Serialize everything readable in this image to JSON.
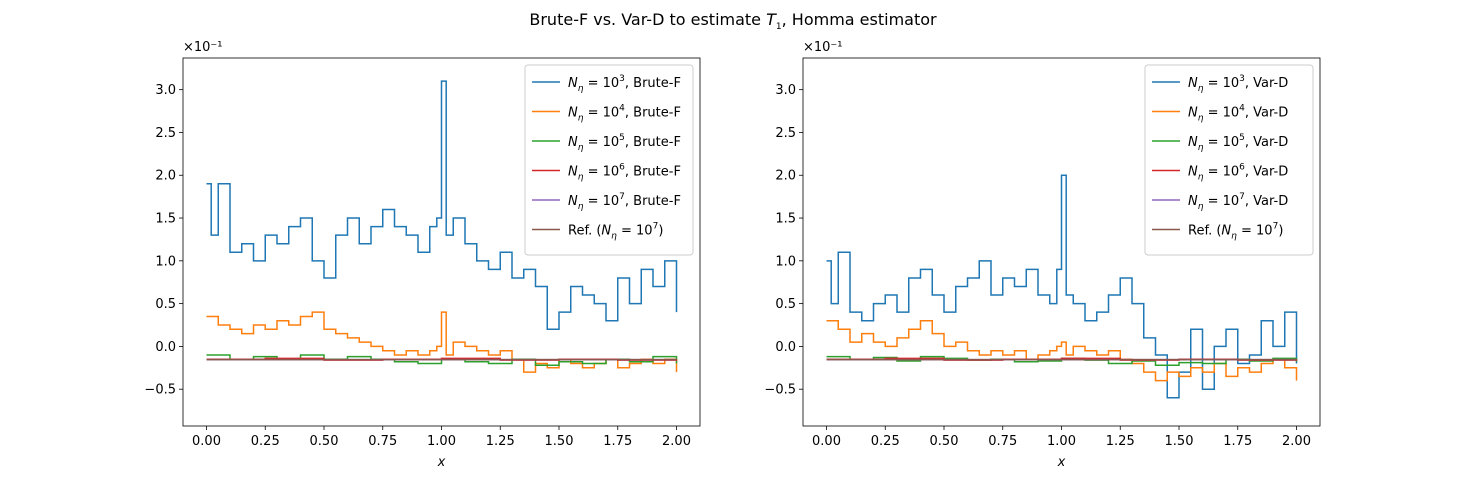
{
  "figure": {
    "title_prefix": "Brute-F vs. Var-D to estimate ",
    "title_symbol": "T",
    "title_subscript": "1",
    "title_suffix": ", Homma estimator"
  },
  "colors": {
    "C0": "#1f77b4",
    "C1": "#ff7f0e",
    "C2": "#2ca02c",
    "C3": "#d62728",
    "C4": "#9467bd",
    "C5": "#8c564b"
  },
  "chart_data": [
    {
      "type": "line",
      "panel": "left",
      "xlabel": "x",
      "ylabel": "",
      "offset_text": "×10⁻¹",
      "xlim": [
        -0.1,
        2.1
      ],
      "ylim": [
        -0.93,
        3.37
      ],
      "xticks": [
        "0.00",
        "0.25",
        "0.50",
        "0.75",
        "1.00",
        "1.25",
        "1.50",
        "1.75",
        "2.00"
      ],
      "yticks": [
        "−0.5",
        "0.0",
        "0.5",
        "1.0",
        "1.5",
        "2.0",
        "2.5",
        "3.0"
      ],
      "legend_position": "upper right",
      "legend_suffix": ", Brute-F",
      "series": [
        {
          "name": "N_η = 10^3, Brute-F",
          "exp": "3",
          "color_key": "C0",
          "style": "step",
          "x": [
            0.0,
            0.02,
            0.05,
            0.1,
            0.15,
            0.2,
            0.25,
            0.3,
            0.35,
            0.4,
            0.45,
            0.5,
            0.55,
            0.6,
            0.65,
            0.7,
            0.75,
            0.8,
            0.85,
            0.9,
            0.95,
            0.98,
            1.0,
            1.02,
            1.05,
            1.1,
            1.15,
            1.2,
            1.25,
            1.3,
            1.35,
            1.4,
            1.45,
            1.5,
            1.55,
            1.6,
            1.65,
            1.7,
            1.75,
            1.8,
            1.85,
            1.9,
            1.95,
            2.0
          ],
          "y": [
            1.9,
            1.3,
            1.9,
            1.1,
            1.2,
            1.0,
            1.3,
            1.2,
            1.4,
            1.5,
            1.0,
            0.8,
            1.3,
            1.5,
            1.2,
            1.4,
            1.6,
            1.4,
            1.3,
            1.1,
            1.4,
            1.5,
            3.1,
            1.3,
            1.5,
            1.2,
            1.0,
            0.9,
            1.1,
            0.8,
            0.9,
            0.7,
            0.2,
            0.4,
            0.7,
            0.6,
            0.5,
            0.3,
            0.8,
            0.5,
            0.9,
            0.7,
            1.0,
            0.4
          ]
        },
        {
          "name": "N_η = 10^4, Brute-F",
          "exp": "4",
          "color_key": "C1",
          "style": "step",
          "x": [
            0.0,
            0.05,
            0.1,
            0.15,
            0.2,
            0.25,
            0.3,
            0.35,
            0.4,
            0.45,
            0.5,
            0.55,
            0.6,
            0.65,
            0.7,
            0.75,
            0.8,
            0.85,
            0.9,
            0.95,
            0.98,
            1.0,
            1.02,
            1.05,
            1.1,
            1.15,
            1.2,
            1.25,
            1.3,
            1.35,
            1.4,
            1.45,
            1.5,
            1.55,
            1.6,
            1.65,
            1.7,
            1.75,
            1.8,
            1.85,
            1.9,
            1.95,
            2.0
          ],
          "y": [
            0.35,
            0.25,
            0.2,
            0.15,
            0.25,
            0.2,
            0.3,
            0.25,
            0.35,
            0.4,
            0.2,
            0.15,
            0.1,
            0.05,
            0.0,
            -0.05,
            -0.1,
            -0.05,
            -0.1,
            -0.05,
            0.0,
            0.4,
            -0.1,
            0.05,
            0.0,
            -0.05,
            -0.1,
            -0.05,
            -0.15,
            -0.3,
            -0.2,
            -0.25,
            -0.15,
            -0.2,
            -0.25,
            -0.2,
            -0.15,
            -0.25,
            -0.2,
            -0.15,
            -0.2,
            -0.15,
            -0.3
          ]
        },
        {
          "name": "N_η = 10^5, Brute-F",
          "exp": "5",
          "color_key": "C2",
          "style": "step",
          "x": [
            0.0,
            0.1,
            0.2,
            0.3,
            0.4,
            0.5,
            0.6,
            0.7,
            0.8,
            0.9,
            1.0,
            1.1,
            1.2,
            1.3,
            1.4,
            1.5,
            1.6,
            1.7,
            1.8,
            1.9,
            2.0
          ],
          "y": [
            -0.1,
            -0.15,
            -0.12,
            -0.15,
            -0.1,
            -0.15,
            -0.12,
            -0.15,
            -0.18,
            -0.2,
            -0.15,
            -0.18,
            -0.2,
            -0.15,
            -0.22,
            -0.18,
            -0.2,
            -0.15,
            -0.18,
            -0.12,
            -0.2
          ]
        },
        {
          "name": "N_η = 10^6, Brute-F",
          "exp": "6",
          "color_key": "C3",
          "style": "step",
          "x": [
            0.0,
            0.25,
            0.5,
            0.75,
            1.0,
            1.25,
            1.5,
            1.75,
            2.0
          ],
          "y": [
            -0.15,
            -0.14,
            -0.16,
            -0.15,
            -0.14,
            -0.16,
            -0.15,
            -0.16,
            -0.15
          ]
        },
        {
          "name": "N_η = 10^7, Brute-F",
          "exp": "7",
          "color_key": "C4",
          "style": "step",
          "x": [
            0.0,
            2.0
          ],
          "y": [
            -0.155,
            -0.155
          ]
        },
        {
          "name": "Ref. (N_η = 10^7)",
          "exp": "7",
          "color_key": "C5",
          "style": "step",
          "x": [
            0.0,
            2.0
          ],
          "y": [
            -0.155,
            -0.155
          ]
        }
      ]
    },
    {
      "type": "line",
      "panel": "right",
      "xlabel": "x",
      "ylabel": "",
      "offset_text": "×10⁻¹",
      "xlim": [
        -0.1,
        2.1
      ],
      "ylim": [
        -0.93,
        3.37
      ],
      "xticks": [
        "0.00",
        "0.25",
        "0.50",
        "0.75",
        "1.00",
        "1.25",
        "1.50",
        "1.75",
        "2.00"
      ],
      "yticks": [
        "−0.5",
        "0.0",
        "0.5",
        "1.0",
        "1.5",
        "2.0",
        "2.5",
        "3.0"
      ],
      "legend_position": "upper right",
      "legend_suffix": ", Var-D",
      "series": [
        {
          "name": "N_η = 10^3, Var-D",
          "exp": "3",
          "color_key": "C0",
          "style": "step",
          "x": [
            0.0,
            0.02,
            0.05,
            0.1,
            0.15,
            0.2,
            0.25,
            0.3,
            0.35,
            0.4,
            0.45,
            0.5,
            0.55,
            0.6,
            0.65,
            0.7,
            0.75,
            0.8,
            0.85,
            0.9,
            0.95,
            0.98,
            1.0,
            1.02,
            1.05,
            1.1,
            1.15,
            1.2,
            1.25,
            1.3,
            1.35,
            1.4,
            1.45,
            1.5,
            1.55,
            1.6,
            1.65,
            1.7,
            1.75,
            1.8,
            1.85,
            1.9,
            1.95,
            2.0
          ],
          "y": [
            1.0,
            0.5,
            1.1,
            0.4,
            0.3,
            0.5,
            0.6,
            0.4,
            0.8,
            0.9,
            0.6,
            0.4,
            0.7,
            0.8,
            1.0,
            0.6,
            0.8,
            0.7,
            0.9,
            0.6,
            0.5,
            0.9,
            2.0,
            0.6,
            0.5,
            0.3,
            0.4,
            0.6,
            0.8,
            0.5,
            0.1,
            -0.1,
            -0.6,
            -0.3,
            0.2,
            -0.5,
            0.0,
            0.2,
            -0.2,
            -0.1,
            0.3,
            0.0,
            0.4,
            -0.2
          ]
        },
        {
          "name": "N_η = 10^4, Var-D",
          "exp": "4",
          "color_key": "C1",
          "style": "step",
          "x": [
            0.0,
            0.05,
            0.1,
            0.15,
            0.2,
            0.25,
            0.3,
            0.35,
            0.4,
            0.45,
            0.5,
            0.55,
            0.6,
            0.65,
            0.7,
            0.75,
            0.8,
            0.85,
            0.9,
            0.95,
            0.98,
            1.0,
            1.02,
            1.05,
            1.1,
            1.15,
            1.2,
            1.25,
            1.3,
            1.35,
            1.4,
            1.45,
            1.5,
            1.55,
            1.6,
            1.65,
            1.7,
            1.75,
            1.8,
            1.85,
            1.9,
            1.95,
            2.0
          ],
          "y": [
            0.3,
            0.2,
            0.05,
            0.15,
            0.05,
            0.0,
            0.1,
            0.2,
            0.3,
            0.15,
            0.0,
            0.05,
            -0.05,
            -0.1,
            -0.05,
            -0.1,
            -0.05,
            -0.15,
            -0.1,
            -0.05,
            0.0,
            0.05,
            -0.1,
            0.0,
            -0.05,
            -0.1,
            -0.05,
            -0.15,
            -0.2,
            -0.3,
            -0.4,
            -0.3,
            -0.35,
            -0.25,
            -0.3,
            -0.2,
            -0.35,
            -0.25,
            -0.3,
            -0.2,
            -0.15,
            -0.25,
            -0.4
          ]
        },
        {
          "name": "N_η = 10^5, Var-D",
          "exp": "5",
          "color_key": "C2",
          "style": "step",
          "x": [
            0.0,
            0.1,
            0.2,
            0.3,
            0.4,
            0.5,
            0.6,
            0.7,
            0.8,
            0.9,
            1.0,
            1.1,
            1.2,
            1.3,
            1.4,
            1.5,
            1.6,
            1.7,
            1.8,
            1.9,
            2.0
          ],
          "y": [
            -0.12,
            -0.15,
            -0.13,
            -0.17,
            -0.12,
            -0.14,
            -0.16,
            -0.15,
            -0.18,
            -0.17,
            -0.14,
            -0.16,
            -0.2,
            -0.17,
            -0.22,
            -0.19,
            -0.2,
            -0.15,
            -0.17,
            -0.14,
            -0.18
          ]
        },
        {
          "name": "N_η = 10^6, Var-D",
          "exp": "6",
          "color_key": "C3",
          "style": "step",
          "x": [
            0.0,
            0.25,
            0.5,
            0.75,
            1.0,
            1.25,
            1.5,
            1.75,
            2.0
          ],
          "y": [
            -0.15,
            -0.14,
            -0.16,
            -0.15,
            -0.14,
            -0.16,
            -0.15,
            -0.16,
            -0.15
          ]
        },
        {
          "name": "N_η = 10^7, Var-D",
          "exp": "7",
          "color_key": "C4",
          "style": "step",
          "x": [
            0.0,
            2.0
          ],
          "y": [
            -0.155,
            -0.155
          ]
        },
        {
          "name": "Ref. (N_η = 10^7)",
          "exp": "7",
          "color_key": "C5",
          "style": "step",
          "x": [
            0.0,
            2.0
          ],
          "y": [
            -0.155,
            -0.155
          ]
        }
      ]
    }
  ]
}
